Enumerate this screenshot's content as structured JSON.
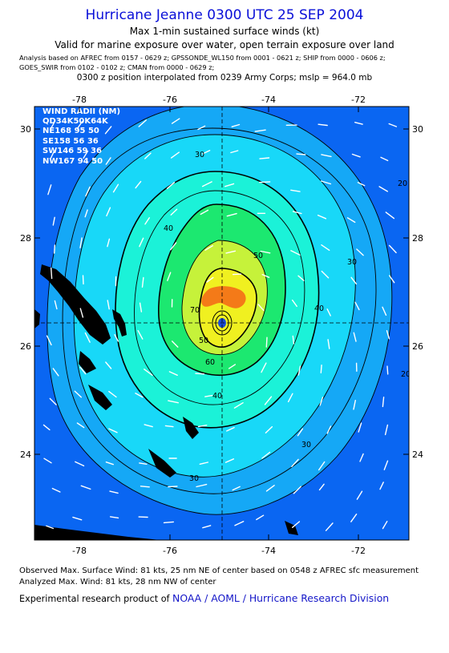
{
  "header": {
    "title": "Hurricane Jeanne 0300 UTC 25 SEP 2004",
    "subtitle": "Max 1-min sustained surface winds (kt)",
    "validity": "Valid for marine exposure over water, open terrain exposure over land",
    "analysis_line1": "Analysis based on  AFREC from 0157 - 0629 z;  GPSSONDE_WL150 from 0001 - 0621 z;  SHIP from 0000 - 0606 z;",
    "analysis_line2": "GOES_SWIR from 0102 - 0102 z;  CMAN from 0000 - 0629 z;",
    "position_note": "0300 z position interpolated from 0239 Army Corps; mslp = 964.0 mb"
  },
  "map": {
    "x_ticks": [
      "-78",
      "-76",
      "-74",
      "-72"
    ],
    "y_ticks": [
      "30",
      "28",
      "26",
      "24"
    ],
    "lon_range": [
      -78.9,
      -70.9
    ],
    "lat_range": [
      22.8,
      30.8
    ],
    "center": {
      "lon": -74.95,
      "lat": 26.4
    },
    "contour_labels": [
      "30",
      "40",
      "50",
      "60",
      "70",
      "30",
      "40",
      "20",
      "30",
      "40",
      "50",
      "30",
      "20"
    ],
    "colors": {
      "band_20": "#0a66f2",
      "band_30": "#15a8f6",
      "band_40": "#18d8f8",
      "band_50": "#1bf2d8",
      "band_60": "#1ce870",
      "band_70": "#c6f23a",
      "band_75": "#f0f020",
      "band_80": "#f47a18",
      "land": "#000000"
    }
  },
  "wind_radii": {
    "title": "WIND RADII (NM)",
    "header": "QD34K50K64K",
    "rows": [
      {
        "quadrant": "NE",
        "values": [
          "168",
          "95",
          "50"
        ]
      },
      {
        "quadrant": "SE",
        "values": [
          "158",
          "56",
          "36"
        ]
      },
      {
        "quadrant": "SW",
        "values": [
          "146",
          "59",
          "36"
        ]
      },
      {
        "quadrant": "NW",
        "values": [
          "167",
          "94",
          "50"
        ]
      }
    ]
  },
  "footer": {
    "observed": "Observed Max. Surface Wind: 81 kts, 25 nm NE of center based on 0548 z AFREC sfc measurement",
    "analyzed": "Analyzed Max. Wind: 81 kts, 28 nm NW of center",
    "credit_prefix": "Experimental research product of ",
    "credit_org": "NOAA / AOML / Hurricane Research Division"
  }
}
